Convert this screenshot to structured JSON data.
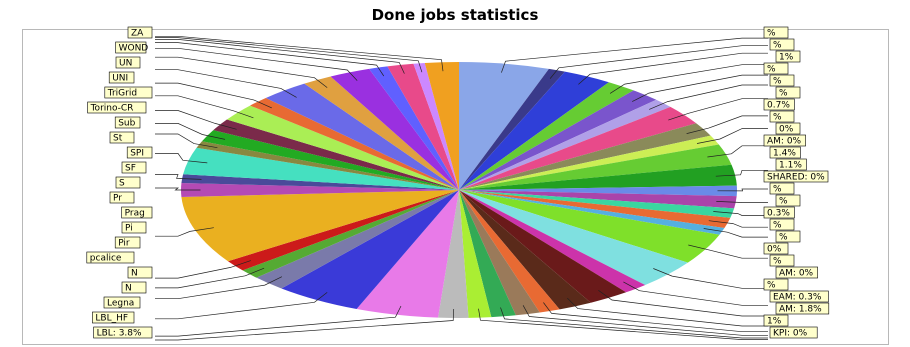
{
  "chart_data": {
    "type": "pie",
    "title": "Done jobs statistics",
    "slices": [
      {
        "label": "",
        "value": 4.8,
        "color": "#8aa6e8"
      },
      {
        "label": "",
        "value": 0.9,
        "color": "#3a3a8a"
      },
      {
        "label": "",
        "value": 2.6,
        "color": "#2f3fd8"
      },
      {
        "label": "",
        "value": 1.6,
        "color": "#66cc33"
      },
      {
        "label": "",
        "value": 1.6,
        "color": "#7a55cc"
      },
      {
        "label": "",
        "value": 1.1,
        "color": "#b0a0e8"
      },
      {
        "label": "",
        "value": 2.3,
        "color": "#e84a8a"
      },
      {
        "label": "",
        "value": 1.6,
        "color": "#8a8a5a"
      },
      {
        "label": "",
        "value": 1.1,
        "color": "#ccee55"
      },
      {
        "label": "",
        "value": 2.4,
        "color": "#66cc33"
      },
      {
        "label": "",
        "value": 2.4,
        "color": "#22a022"
      },
      {
        "label": "",
        "value": 1.2,
        "color": "#6a8ae8"
      },
      {
        "label": "",
        "value": 1.4,
        "color": "#aa44aa"
      },
      {
        "label": "",
        "value": 1.1,
        "color": "#3ad6a0"
      },
      {
        "label": "",
        "value": 1.2,
        "color": "#e86a33"
      },
      {
        "label": "",
        "value": 0.8,
        "color": "#55b0e0"
      },
      {
        "label": "",
        "value": 3.6,
        "color": "#7fe02a"
      },
      {
        "label": "",
        "value": 3.4,
        "color": "#7fe0e0"
      },
      {
        "label": "",
        "value": 1.3,
        "color": "#cc33aa"
      },
      {
        "label": "",
        "value": 2.2,
        "color": "#6a1a1a"
      },
      {
        "label": "",
        "value": 1.8,
        "color": "#5a2a1a"
      },
      {
        "label": "",
        "value": 1.1,
        "color": "#e86a33"
      },
      {
        "label": "",
        "value": 1.3,
        "color": "#9a7a5a"
      },
      {
        "label": "",
        "value": 1.3,
        "color": "#33aa55"
      },
      {
        "label": "",
        "value": 1.2,
        "color": "#aaee33"
      },
      {
        "label": "",
        "value": 1.6,
        "color": "#bbbbbb"
      },
      {
        "label": "",
        "value": 4.4,
        "color": "#e87ae8"
      },
      {
        "label": "",
        "value": 4.6,
        "color": "#3a3ad8"
      },
      {
        "label": "",
        "value": 1.8,
        "color": "#7a7aaa"
      },
      {
        "label": "",
        "value": 1.1,
        "color": "#55aa33"
      },
      {
        "label": "",
        "value": 1.3,
        "color": "#cc1a1a"
      },
      {
        "label": "",
        "value": 7.8,
        "color": "#eab020"
      },
      {
        "label": "",
        "value": 1.6,
        "color": "#b44ab4"
      },
      {
        "label": "",
        "value": 1.0,
        "color": "#4a4a9a"
      },
      {
        "label": "",
        "value": 3.1,
        "color": "#45e0c0"
      },
      {
        "label": "",
        "value": 0.8,
        "color": "#888840"
      },
      {
        "label": "",
        "value": 1.4,
        "color": "#22aa22"
      },
      {
        "label": "",
        "value": 1.4,
        "color": "#7a2a4a"
      },
      {
        "label": "",
        "value": 2.0,
        "color": "#aaee55"
      },
      {
        "label": "",
        "value": 1.2,
        "color": "#e86a33"
      },
      {
        "label": "",
        "value": 2.6,
        "color": "#6a6ae8"
      },
      {
        "label": "",
        "value": 1.6,
        "color": "#e0a040"
      },
      {
        "label": "",
        "value": 2.2,
        "color": "#9a30e0"
      },
      {
        "label": "",
        "value": 1.0,
        "color": "#6060ff"
      },
      {
        "label": "",
        "value": 1.4,
        "color": "#e84a8a"
      },
      {
        "label": "",
        "value": 0.6,
        "color": "#cc88ff"
      },
      {
        "label": "",
        "value": 1.8,
        "color": "#f0a020"
      }
    ],
    "left_labels": [
      "ZA",
      "WOND",
      "UN",
      "UNI",
      "TriGrid",
      "Torino-CR",
      "Sub",
      "St",
      "SPI",
      "SF",
      "S",
      "Pr",
      "Prag",
      "Pi",
      "Pir",
      "pcalice",
      "N",
      "N",
      "Legna",
      "LBL_HF",
      "LBL: 3.8%"
    ],
    "right_labels": [
      "%",
      "%",
      "1%",
      "%",
      "%",
      "%",
      "0.7%",
      "%",
      "0%",
      "AM: 0%",
      "1.4%",
      "1.1%",
      "SHARED: 0%",
      "%",
      "%",
      "0.3%",
      "%",
      "%",
      "0%",
      "%",
      "AM: 0%",
      "%",
      "EAM: 0.3%",
      "AM: 1.8%",
      "1%",
      "KPI: 0%"
    ]
  }
}
